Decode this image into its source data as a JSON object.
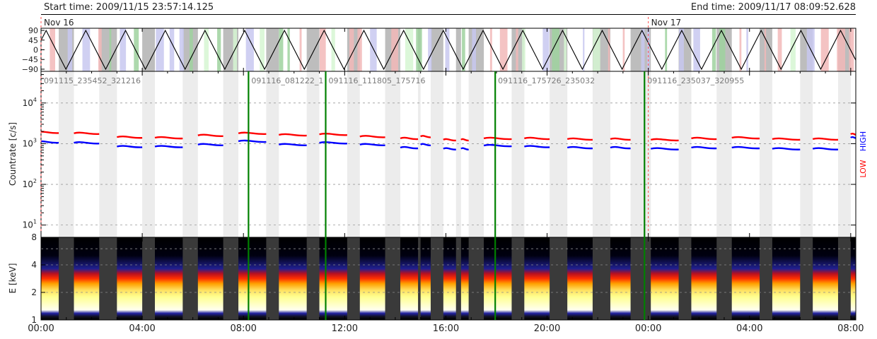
{
  "header": {
    "start": "Start time: 2009/11/15 23:57:14.125",
    "end": "End time: 2009/11/17 08:09:52.628"
  },
  "day_markers": [
    {
      "label": "Nov 16",
      "hour": 0
    },
    {
      "label": "Nov 17",
      "hour": 24
    }
  ],
  "colors": {
    "low": "#ff0000",
    "high": "#0000ff",
    "boundary": "#008000",
    "shade_gray": "#bdbdbd",
    "shade_light": "#ececec",
    "blue_band": "#c8c8f0",
    "red_band": "#f2b8b8",
    "green_band": "#9fd29f",
    "lightgreen_band": "#d6f6d2",
    "spec_bg": "#3a3a3a"
  },
  "chart_data": {
    "type": "line",
    "x_range_hours": [
      0,
      32.2
    ],
    "x_ticks": [
      "00:00",
      "04:00",
      "08:00",
      "12:00",
      "16:00",
      "20:00",
      "00:00",
      "04:00",
      "08:00"
    ],
    "attitude_panel": {
      "yticks": [
        "90",
        "45",
        "0",
        "−45",
        "−90"
      ],
      "ylim": [
        -100,
        100
      ],
      "period_hours": 1.57,
      "first_peak_hour": 0.2
    },
    "count_panel": {
      "ylabel": "Countrate [c/s]",
      "yscale": "log",
      "ylim": [
        5,
        60000
      ],
      "ytick_values": [
        10,
        100,
        1000,
        10000
      ],
      "legend": {
        "low": "LOW",
        "high": "HIGH"
      },
      "segments_hours": [
        [
          -0.2,
          0.7
        ],
        [
          1.3,
          2.3
        ],
        [
          3.0,
          4.0
        ],
        [
          4.5,
          5.6
        ],
        [
          6.2,
          7.2
        ],
        [
          7.8,
          8.9
        ],
        [
          9.4,
          10.5
        ],
        [
          11.0,
          12.1
        ],
        [
          12.6,
          13.6
        ],
        [
          14.2,
          14.9
        ],
        [
          15.0,
          15.4
        ],
        [
          15.9,
          16.4
        ],
        [
          16.6,
          16.9
        ],
        [
          17.5,
          18.6
        ],
        [
          19.1,
          20.1
        ],
        [
          20.8,
          21.8
        ],
        [
          22.5,
          23.3
        ],
        [
          24.1,
          25.2
        ],
        [
          25.7,
          26.7
        ],
        [
          27.3,
          28.4
        ],
        [
          28.9,
          30.0
        ],
        [
          30.5,
          31.5
        ],
        [
          32.0,
          32.3
        ]
      ],
      "low_series": [
        1900,
        1800,
        1450,
        1400,
        1600,
        1800,
        1650,
        1700,
        1500,
        1350,
        1500,
        1250,
        1250,
        1350,
        1350,
        1300,
        1300,
        1250,
        1350,
        1400,
        1300,
        1300,
        1700
      ],
      "high_series": [
        1100,
        1050,
        850,
        850,
        950,
        1150,
        950,
        1050,
        950,
        800,
        950,
        750,
        750,
        900,
        850,
        800,
        800,
        750,
        800,
        800,
        750,
        750,
        1400
      ]
    },
    "segment_boundaries": [
      {
        "hour": 8.2,
        "label": "091116_081222_1"
      },
      {
        "hour": 11.25,
        "label": "091116_111805_175716"
      },
      {
        "hour": 17.95,
        "label": "091116_175726_235032"
      },
      {
        "hour": 23.85,
        "label": "091116_235037_320955"
      }
    ],
    "first_segment_label": "091115_235452_321216",
    "spectrogram_panel": {
      "ylabel": "E [keV]",
      "yscale": "log",
      "ylim": [
        1,
        8
      ],
      "yticks": [
        1,
        2,
        4,
        8
      ],
      "tick_labels": [
        "1",
        "2",
        "4",
        "8"
      ]
    }
  }
}
